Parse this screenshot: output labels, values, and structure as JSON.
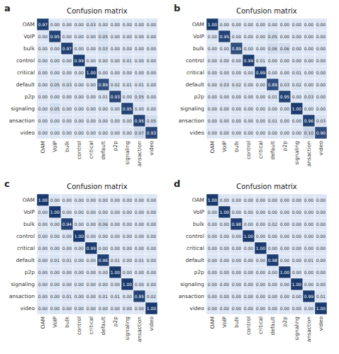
{
  "chart_data": [
    {
      "type": "heatmap",
      "title": "Confusion matrix",
      "annotations": [
        "a"
      ],
      "x_categories": [
        "OAM",
        "VoIP",
        "bulk",
        "control",
        "critical",
        "default",
        "p2p",
        "signaling",
        "ansaction",
        "video"
      ],
      "y_categories": [
        "OAM",
        "VoIP",
        "bulk",
        "control",
        "critical",
        "default",
        "p2p",
        "signaling",
        "ansaction",
        "video"
      ],
      "colors": [
        "#dce6f5",
        "#1a3a6e"
      ],
      "color_range": [
        0.0,
        1.0
      ],
      "data_labels": true,
      "values": [
        [
          0.97,
          0.0,
          0.0,
          0.0,
          0.03,
          0.0,
          0.0,
          0.0,
          0.0,
          0.0
        ],
        [
          0.0,
          0.95,
          0.0,
          0.0,
          0.0,
          0.05,
          0.0,
          0.0,
          0.0,
          0.0
        ],
        [
          0.0,
          0.0,
          0.97,
          0.0,
          0.0,
          0.03,
          0.0,
          0.0,
          0.0,
          0.0
        ],
        [
          0.0,
          0.0,
          0.0,
          0.99,
          0.0,
          0.0,
          0.0,
          0.01,
          0.0,
          0.0
        ],
        [
          0.0,
          0.0,
          0.0,
          0.0,
          1.0,
          0.0,
          0.0,
          0.0,
          0.0,
          0.0
        ],
        [
          0.0,
          0.05,
          0.03,
          0.0,
          0.0,
          0.89,
          0.02,
          0.01,
          0.01,
          0.0
        ],
        [
          0.0,
          0.0,
          0.0,
          0.0,
          0.0,
          0.01,
          0.93,
          0.0,
          0.05,
          0.0
        ],
        [
          0.0,
          0.05,
          0.0,
          0.0,
          0.0,
          0.0,
          0.0,
          0.95,
          0.0,
          0.0
        ],
        [
          0.0,
          0.0,
          0.0,
          0.0,
          0.0,
          0.0,
          0.0,
          0.0,
          0.95,
          0.05
        ],
        [
          0.0,
          0.0,
          0.0,
          0.0,
          0.0,
          0.0,
          0.0,
          0.0,
          0.07,
          0.93
        ]
      ],
      "value_labels": [
        [
          "0.97",
          "0.00",
          "0.00",
          "0.00",
          "0.03",
          "0.00",
          "0.00",
          "0.00",
          "0.00",
          "0.00"
        ],
        [
          "0.00",
          "0.95",
          "0.00",
          "0.00",
          "0.00",
          "0.05",
          "0.00",
          "0.00",
          "0.00",
          "0.00"
        ],
        [
          "0.00",
          "0.00",
          "0.97",
          "0.00",
          "0.00",
          "0.03",
          "0.00",
          "0.00",
          "0.00",
          "0.00"
        ],
        [
          "0.00",
          "0.00",
          "0.00",
          "0.99",
          "0.00",
          "0.00",
          "0.00",
          "0.01",
          "0.00",
          "0.00"
        ],
        [
          "0.00",
          "0.00",
          "0.00",
          "0.00",
          "1.00",
          "0.00",
          "0.00",
          "0.00",
          "0.00",
          "0.00"
        ],
        [
          "0.00",
          "0.05",
          "0.03",
          "0.00",
          "0.00",
          "0.89",
          "0.02",
          "0.01",
          "0.01",
          "0.00"
        ],
        [
          "0.00",
          "0.00",
          "0.00",
          "0.00",
          "0.00",
          "0.01",
          "0.93",
          "0.00",
          "0.05",
          "0.00"
        ],
        [
          "0.00",
          "0.05",
          "0.00",
          "0.00",
          "0.00",
          "0.00",
          "0.00",
          "0.95",
          "0.00",
          "0.00"
        ],
        [
          "0.00",
          "0.00",
          "0.00",
          "0.00",
          "0.00",
          "0.00",
          "0.00",
          "0.00",
          "0.95",
          "0.05"
        ],
        [
          "0.00",
          "0.00",
          "0.00",
          "0.00",
          "0.00",
          "0.00",
          "0.00",
          "0.00",
          "0.07",
          "0.93"
        ]
      ]
    },
    {
      "type": "heatmap",
      "title": "Confusion matrix",
      "annotations": [
        "b"
      ],
      "x_categories": [
        "OAM",
        "VoIP",
        "bulk",
        "control",
        "critical",
        "default",
        "p2p",
        "signaling",
        "ansaction",
        "video"
      ],
      "y_categories": [
        "OAM",
        "VoIP",
        "bulk",
        "control",
        "critical",
        "default",
        "p2p",
        "signaling",
        "ansaction",
        "video"
      ],
      "colors": [
        "#dce6f5",
        "#1a3a6e"
      ],
      "color_range": [
        0.0,
        1.0
      ],
      "data_labels": true,
      "values": [
        [
          1.0,
          0.0,
          0.0,
          0.0,
          0.0,
          0.0,
          0.0,
          0.0,
          0.0,
          0.0
        ],
        [
          0.0,
          0.95,
          0.0,
          0.0,
          0.0,
          0.05,
          0.0,
          0.0,
          0.0,
          0.0
        ],
        [
          0.0,
          0.0,
          0.89,
          0.0,
          0.0,
          0.06,
          0.06,
          0.0,
          0.0,
          0.0
        ],
        [
          0.0,
          0.0,
          0.0,
          0.99,
          0.01,
          0.0,
          0.0,
          0.0,
          0.0,
          0.0
        ],
        [
          0.0,
          0.0,
          0.0,
          0.0,
          0.99,
          0.0,
          0.0,
          0.01,
          0.0,
          0.0
        ],
        [
          0.0,
          0.03,
          0.02,
          0.0,
          0.0,
          0.89,
          0.03,
          0.02,
          0.0,
          0.0
        ],
        [
          0.0,
          0.0,
          0.0,
          0.0,
          0.0,
          0.01,
          0.95,
          0.0,
          0.03,
          0.0
        ],
        [
          0.0,
          0.0,
          0.0,
          0.0,
          0.0,
          0.0,
          0.0,
          1.0,
          0.0,
          0.0
        ],
        [
          0.0,
          0.0,
          0.0,
          0.0,
          0.0,
          0.01,
          0.0,
          0.0,
          0.96,
          0.03
        ],
        [
          0.0,
          0.0,
          0.0,
          0.0,
          0.0,
          0.0,
          0.0,
          0.0,
          0.1,
          0.9
        ]
      ],
      "value_labels": [
        [
          "1.00",
          "0.00",
          "0.00",
          "0.00",
          "0.00",
          "0.00",
          "0.00",
          "0.00",
          "0.00",
          "0.00"
        ],
        [
          "0.00",
          "0.95",
          "0.00",
          "0.00",
          "0.00",
          "0.05",
          "0.00",
          "0.00",
          "0.00",
          "0.00"
        ],
        [
          "0.00",
          "0.00",
          "0.89",
          "0.00",
          "0.00",
          "0.06",
          "0.06",
          "0.00",
          "0.00",
          "0.00"
        ],
        [
          "0.00",
          "0.00",
          "0.00",
          "0.99",
          "0.01",
          "0.00",
          "0.00",
          "0.00",
          "0.00",
          "0.00"
        ],
        [
          "0.00",
          "0.00",
          "0.00",
          "0.00",
          "0.99",
          "0.00",
          "0.00",
          "0.01",
          "0.00",
          "0.00"
        ],
        [
          "0.00",
          "0.03",
          "0.02",
          "0.00",
          "0.00",
          "0.89",
          "0.03",
          "0.02",
          "0.00",
          "0.00"
        ],
        [
          "0.00",
          "0.00",
          "0.00",
          "0.00",
          "0.00",
          "0.01",
          "0.95",
          "0.00",
          "0.03",
          "0.00"
        ],
        [
          "0.00",
          "0.00",
          "0.00",
          "0.00",
          "0.00",
          "0.00",
          "0.00",
          "1.00",
          "0.00",
          "0.00"
        ],
        [
          "0.00",
          "0.00",
          "0.00",
          "0.00",
          "0.00",
          "0.01",
          "0.00",
          "0.00",
          "0.96",
          "0.03"
        ],
        [
          "0.00",
          "0.00",
          "0.00",
          "0.00",
          "0.00",
          "0.00",
          "0.00",
          "0.00",
          "0.10",
          "0.90"
        ]
      ]
    },
    {
      "type": "heatmap",
      "title": "Confusion matrix",
      "annotations": [
        "c"
      ],
      "x_categories": [
        "OAM",
        "VoIP",
        "bulk",
        "control",
        "critical",
        "default",
        "p2p",
        "signaling",
        "ansaction",
        "video"
      ],
      "y_categories": [
        "OAM",
        "VoIP",
        "bulk",
        "control",
        "critical",
        "default",
        "p2p",
        "signaling",
        "ansaction",
        "video"
      ],
      "colors": [
        "#dce6f5",
        "#1a3a6e"
      ],
      "color_range": [
        0.0,
        1.0
      ],
      "data_labels": true,
      "values": [
        [
          1.0,
          0.0,
          0.0,
          0.0,
          0.0,
          0.0,
          0.0,
          0.0,
          0.0,
          0.0
        ],
        [
          0.0,
          1.0,
          0.0,
          0.0,
          0.0,
          0.0,
          0.0,
          0.0,
          0.0,
          0.0
        ],
        [
          0.0,
          0.0,
          0.94,
          0.0,
          0.0,
          0.06,
          0.0,
          0.0,
          0.0,
          0.0
        ],
        [
          0.0,
          0.0,
          0.0,
          1.0,
          0.0,
          0.0,
          0.0,
          0.0,
          0.0,
          0.0
        ],
        [
          0.0,
          0.0,
          0.0,
          0.0,
          0.99,
          0.0,
          0.0,
          0.0,
          0.0,
          0.0
        ],
        [
          0.0,
          0.01,
          0.01,
          0.0,
          0.0,
          0.96,
          0.01,
          0.0,
          0.01,
          0.0
        ],
        [
          0.0,
          0.0,
          0.0,
          0.0,
          0.0,
          0.0,
          1.0,
          0.0,
          0.0,
          0.0
        ],
        [
          0.0,
          0.0,
          0.0,
          0.0,
          0.0,
          0.0,
          0.0,
          1.0,
          0.0,
          0.0
        ],
        [
          0.0,
          0.0,
          0.01,
          0.0,
          0.0,
          0.01,
          0.01,
          0.0,
          0.95,
          0.02
        ],
        [
          0.0,
          0.0,
          0.0,
          0.0,
          0.0,
          0.0,
          0.0,
          0.0,
          0.0,
          1.0
        ]
      ],
      "value_labels": [
        [
          "1.00",
          "0.00",
          "0.00",
          "0.00",
          "0.00",
          "0.00",
          "0.00",
          "0.00",
          "0.00",
          "0.00"
        ],
        [
          "0.00",
          "1.00",
          "0.00",
          "0.00",
          "0.00",
          "0.00",
          "0.00",
          "0.00",
          "0.00",
          "0.00"
        ],
        [
          "0.00",
          "0.00",
          "0.94",
          "0.00",
          "0.00",
          "0.06",
          "0.00",
          "0.00",
          "0.00",
          "0.00"
        ],
        [
          "0.00",
          "0.00",
          "0.00",
          "1.00",
          "0.00",
          "0.00",
          "0.00",
          "0.00",
          "0.00",
          "0.00"
        ],
        [
          "0.00",
          "0.00",
          "0.00",
          "0.00",
          "0.99",
          "0.00",
          "0.00",
          "0.00",
          "0.00",
          "0.00"
        ],
        [
          "0.00",
          "0.01",
          "0.01",
          "0.00",
          "0.00",
          "0.96",
          "0.01",
          "0.00",
          "0.01",
          "0.00"
        ],
        [
          "0.00",
          "0.00",
          "0.00",
          "0.00",
          "0.00",
          "0.00",
          "1.00",
          "0.00",
          "0.00",
          "0.00"
        ],
        [
          "0.00",
          "0.00",
          "0.00",
          "0.00",
          "0.00",
          "0.00",
          "0.00",
          "1.00",
          "0.00",
          "0.00"
        ],
        [
          "0.00",
          "0.00",
          "0.01",
          "0.00",
          "0.00",
          "0.01",
          "0.01",
          "0.00",
          "0.95",
          "0.02"
        ],
        [
          "0.00",
          "0.00",
          "0.00",
          "0.00",
          "0.00",
          "0.00",
          "0.00",
          "0.00",
          "0.00",
          "1.00"
        ]
      ]
    },
    {
      "type": "heatmap",
      "title": "Confusion matrix",
      "annotations": [
        "d"
      ],
      "x_categories": [
        "OAM",
        "VoIP",
        "bulk",
        "control",
        "critical",
        "default",
        "p2p",
        "signaling",
        "ansaction",
        "video"
      ],
      "y_categories": [
        "OAM",
        "VoIP",
        "bulk",
        "control",
        "critical",
        "default",
        "p2p",
        "signaling",
        "ansaction",
        "video"
      ],
      "colors": [
        "#dce6f5",
        "#1a3a6e"
      ],
      "color_range": [
        0.0,
        1.0
      ],
      "data_labels": true,
      "values": [
        [
          1.0,
          0.0,
          0.0,
          0.0,
          0.0,
          0.0,
          0.0,
          0.0,
          0.0,
          0.0
        ],
        [
          0.0,
          1.0,
          0.0,
          0.0,
          0.0,
          0.0,
          0.0,
          0.0,
          0.0,
          0.0
        ],
        [
          0.0,
          0.0,
          0.98,
          0.0,
          0.0,
          0.02,
          0.0,
          0.0,
          0.0,
          0.0
        ],
        [
          0.0,
          0.0,
          0.0,
          1.0,
          0.0,
          0.0,
          0.0,
          0.0,
          0.0,
          0.0
        ],
        [
          0.0,
          0.0,
          0.0,
          0.0,
          1.0,
          0.0,
          0.0,
          0.0,
          0.0,
          0.0
        ],
        [
          0.0,
          0.0,
          0.0,
          0.0,
          0.0,
          0.98,
          0.0,
          0.0,
          0.01,
          0.0
        ],
        [
          0.0,
          0.0,
          0.0,
          0.0,
          0.0,
          0.0,
          1.0,
          0.0,
          0.0,
          0.0
        ],
        [
          0.0,
          0.0,
          0.0,
          0.0,
          0.0,
          0.0,
          0.0,
          1.0,
          0.0,
          0.0
        ],
        [
          0.0,
          0.0,
          0.0,
          0.0,
          0.0,
          0.0,
          0.0,
          0.0,
          0.99,
          0.01
        ],
        [
          0.0,
          0.0,
          0.0,
          0.0,
          0.0,
          0.0,
          0.0,
          0.0,
          0.0,
          1.0
        ]
      ],
      "value_labels": [
        [
          "1.00",
          "0.00",
          "0.00",
          "0.00",
          "0.00",
          "0.00",
          "0.00",
          "0.00",
          "0.00",
          "0.00"
        ],
        [
          "0.00",
          "1.00",
          "0.00",
          "0.00",
          "0.00",
          "0.00",
          "0.00",
          "0.00",
          "0.00",
          "0.00"
        ],
        [
          "0.00",
          "0.00",
          "0.98",
          "0.00",
          "0.00",
          "0.02",
          "0.00",
          "0.00",
          "0.00",
          "0.00"
        ],
        [
          "0.00",
          "0.00",
          "0.00",
          "1.00",
          "0.00",
          "0.00",
          "0.00",
          "0.00",
          "0.00",
          "0.00"
        ],
        [
          "0.00",
          "0.00",
          "0.00",
          "0.00",
          "1.00",
          "0.00",
          "0.00",
          "0.00",
          "0.00",
          "0.00"
        ],
        [
          "0.00",
          "0.00",
          "0.00",
          "0.00",
          "0.00",
          "0.98",
          "0.00",
          "0.00",
          "0.01",
          "0.00"
        ],
        [
          "0.00",
          "0.00",
          "0.00",
          "0.00",
          "0.00",
          "0.00",
          "1.00",
          "0.00",
          "0.00",
          "0.00"
        ],
        [
          "0.00",
          "0.00",
          "0.00",
          "0.00",
          "0.00",
          "0.00",
          "0.00",
          "1.00",
          "0.00",
          "0.00"
        ],
        [
          "0.00",
          "0.00",
          "0.00",
          "0.00",
          "0.00",
          "0.00",
          "0.00",
          "0.00",
          "0.99",
          "0.01"
        ],
        [
          "0.00",
          "0.00",
          "0.00",
          "0.00",
          "0.00",
          "0.00",
          "0.00",
          "0.00",
          "0.00",
          "1.00"
        ]
      ]
    }
  ]
}
